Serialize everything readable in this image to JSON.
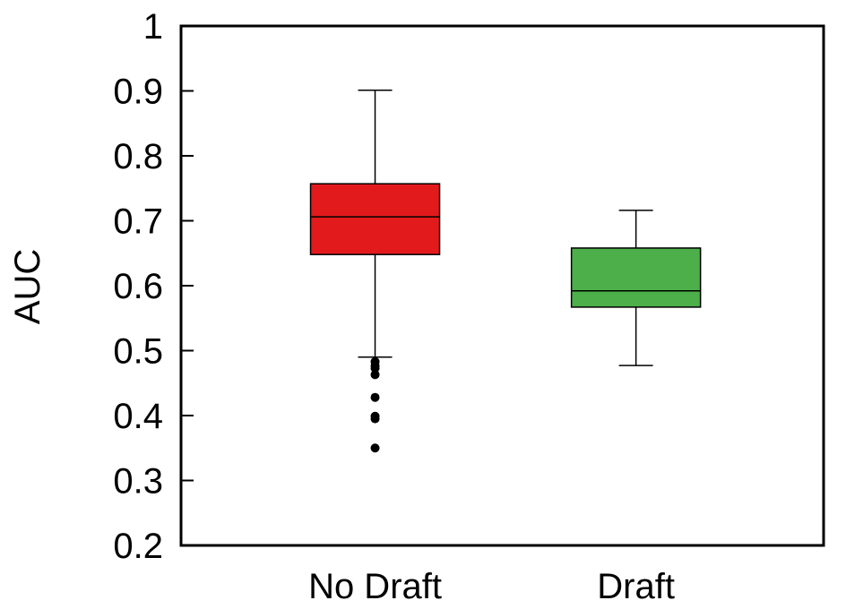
{
  "chart_data": {
    "type": "box",
    "title": "",
    "xlabel": "",
    "ylabel": "AUC",
    "ylim": [
      0.2,
      1.0
    ],
    "yticks": [
      "0.2",
      "0.3",
      "0.4",
      "0.5",
      "0.6",
      "0.7",
      "0.8",
      "0.9",
      "1"
    ],
    "yticks_values": [
      0.2,
      0.3,
      0.4,
      0.5,
      0.6,
      0.7,
      0.8,
      0.9,
      1.0
    ],
    "grid": false,
    "categories": [
      "No Draft",
      "Draft"
    ],
    "series": [
      {
        "category": "No Draft",
        "color": "#e31a1c",
        "whisker_low": 0.49,
        "q1": 0.648,
        "median": 0.706,
        "q3": 0.757,
        "whisker_high": 0.901,
        "outliers": [
          0.483,
          0.477,
          0.473,
          0.463,
          0.428,
          0.399,
          0.395,
          0.35
        ]
      },
      {
        "category": "Draft",
        "color": "#4daf4a",
        "whisker_low": 0.477,
        "q1": 0.567,
        "median": 0.592,
        "q3": 0.658,
        "whisker_high": 0.716,
        "outliers": []
      }
    ]
  }
}
